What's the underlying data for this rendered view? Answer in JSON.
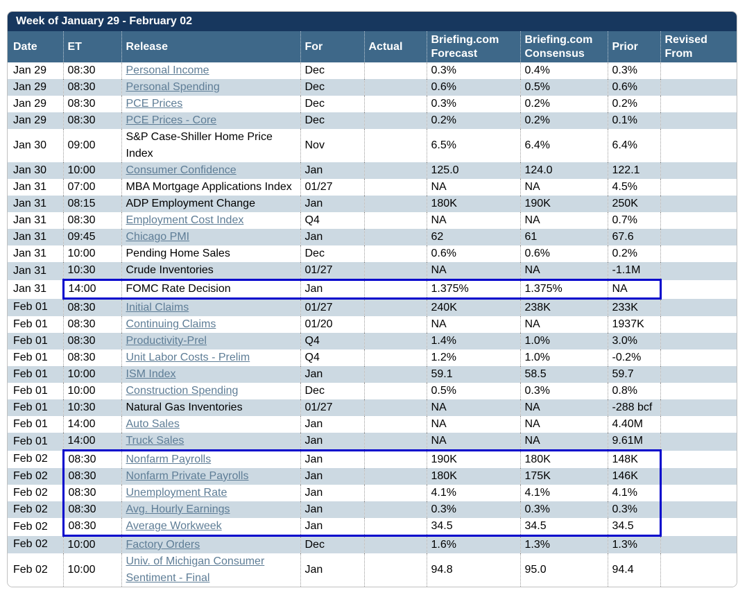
{
  "title": "Week of January 29 - February 02",
  "colors": {
    "title_bar_bg": "#17375E",
    "header_bg": "#3E6889",
    "alt_row_bg": "#CCD9E2",
    "link": "#5E7D96",
    "highlight_border": "#0000CC",
    "outer_border": "#C0C0C0",
    "dotted_separator": "#999999",
    "title_text": "#FFFFFF",
    "header_text": "#FFFFFF",
    "body_text": "#000000"
  },
  "columns": [
    {
      "key": "date",
      "label": "Date"
    },
    {
      "key": "et",
      "label": "ET"
    },
    {
      "key": "release",
      "label": "Release"
    },
    {
      "key": "for",
      "label": "For"
    },
    {
      "key": "actual",
      "label": "Actual"
    },
    {
      "key": "forecast",
      "label": "Briefing.com Forecast"
    },
    {
      "key": "consensus",
      "label": "Briefing.com Consensus"
    },
    {
      "key": "prior",
      "label": "Prior"
    },
    {
      "key": "revised",
      "label": "Revised From"
    }
  ],
  "rows": [
    {
      "date": "Jan 29",
      "et": "08:30",
      "release": "Personal Income",
      "is_link": true,
      "for": "Dec",
      "actual": "",
      "forecast": "0.3%",
      "consensus": "0.4%",
      "prior": "0.3%",
      "revised": "",
      "highlight": "none"
    },
    {
      "date": "Jan 29",
      "et": "08:30",
      "release": "Personal Spending",
      "is_link": true,
      "for": "Dec",
      "actual": "",
      "forecast": "0.6%",
      "consensus": "0.5%",
      "prior": "0.6%",
      "revised": "",
      "highlight": "none"
    },
    {
      "date": "Jan 29",
      "et": "08:30",
      "release": "PCE Prices",
      "is_link": true,
      "for": "Dec",
      "actual": "",
      "forecast": "0.3%",
      "consensus": "0.2%",
      "prior": "0.2%",
      "revised": "",
      "highlight": "none"
    },
    {
      "date": "Jan 29",
      "et": "08:30",
      "release": "PCE Prices - Core",
      "is_link": true,
      "for": "Dec",
      "actual": "",
      "forecast": "0.2%",
      "consensus": "0.2%",
      "prior": "0.1%",
      "revised": "",
      "highlight": "none"
    },
    {
      "date": "Jan 30",
      "et": "09:00",
      "release": "S&P Case-Shiller Home Price Index",
      "is_link": false,
      "for": "Nov",
      "actual": "",
      "forecast": "6.5%",
      "consensus": "6.4%",
      "prior": "6.4%",
      "revised": "",
      "highlight": "none"
    },
    {
      "date": "Jan 30",
      "et": "10:00",
      "release": "Consumer Confidence",
      "is_link": true,
      "for": "Jan",
      "actual": "",
      "forecast": "125.0",
      "consensus": "124.0",
      "prior": "122.1",
      "revised": "",
      "highlight": "none"
    },
    {
      "date": "Jan 31",
      "et": "07:00",
      "release": "MBA Mortgage Applications Index",
      "is_link": false,
      "for": "01/27",
      "actual": "",
      "forecast": "NA",
      "consensus": "NA",
      "prior": "4.5%",
      "revised": "",
      "highlight": "none"
    },
    {
      "date": "Jan 31",
      "et": "08:15",
      "release": "ADP Employment Change",
      "is_link": false,
      "for": "Jan",
      "actual": "",
      "forecast": "180K",
      "consensus": "190K",
      "prior": "250K",
      "revised": "",
      "highlight": "none"
    },
    {
      "date": "Jan 31",
      "et": "08:30",
      "release": "Employment Cost Index",
      "is_link": true,
      "for": "Q4",
      "actual": "",
      "forecast": "NA",
      "consensus": "NA",
      "prior": "0.7%",
      "revised": "",
      "highlight": "none"
    },
    {
      "date": "Jan 31",
      "et": "09:45",
      "release": "Chicago PMI",
      "is_link": true,
      "for": "Jan",
      "actual": "",
      "forecast": "62",
      "consensus": "61",
      "prior": "67.6",
      "revised": "",
      "highlight": "none"
    },
    {
      "date": "Jan 31",
      "et": "10:00",
      "release": "Pending Home Sales",
      "is_link": false,
      "for": "Dec",
      "actual": "",
      "forecast": "0.6%",
      "consensus": "0.6%",
      "prior": "0.2%",
      "revised": "",
      "highlight": "none"
    },
    {
      "date": "Jan 31",
      "et": "10:30",
      "release": "Crude Inventories",
      "is_link": false,
      "for": "01/27",
      "actual": "",
      "forecast": "NA",
      "consensus": "NA",
      "prior": "-1.1M",
      "revised": "",
      "highlight": "none"
    },
    {
      "date": "Jan 31",
      "et": "14:00",
      "release": "FOMC Rate Decision",
      "is_link": false,
      "for": "Jan",
      "actual": "",
      "forecast": "1.375%",
      "consensus": "1.375%",
      "prior": "NA",
      "revised": "",
      "highlight": "single"
    },
    {
      "date": "Feb 01",
      "et": "08:30",
      "release": "Initial Claims",
      "is_link": true,
      "for": "01/27",
      "actual": "",
      "forecast": "240K",
      "consensus": "238K",
      "prior": "233K",
      "revised": "",
      "highlight": "none"
    },
    {
      "date": "Feb 01",
      "et": "08:30",
      "release": "Continuing Claims",
      "is_link": true,
      "for": "01/20",
      "actual": "",
      "forecast": "NA",
      "consensus": "NA",
      "prior": "1937K",
      "revised": "",
      "highlight": "none"
    },
    {
      "date": "Feb 01",
      "et": "08:30",
      "release": "Productivity-Prel",
      "is_link": true,
      "for": "Q4",
      "actual": "",
      "forecast": "1.4%",
      "consensus": "1.0%",
      "prior": "3.0%",
      "revised": "",
      "highlight": "none"
    },
    {
      "date": "Feb 01",
      "et": "08:30",
      "release": "Unit Labor Costs - Prelim",
      "is_link": true,
      "for": "Q4",
      "actual": "",
      "forecast": "1.2%",
      "consensus": "1.0%",
      "prior": "-0.2%",
      "revised": "",
      "highlight": "none"
    },
    {
      "date": "Feb 01",
      "et": "10:00",
      "release": "ISM Index",
      "is_link": true,
      "for": "Jan",
      "actual": "",
      "forecast": "59.1",
      "consensus": "58.5",
      "prior": "59.7",
      "revised": "",
      "highlight": "none"
    },
    {
      "date": "Feb 01",
      "et": "10:00",
      "release": "Construction Spending",
      "is_link": true,
      "for": "Dec",
      "actual": "",
      "forecast": "0.5%",
      "consensus": "0.3%",
      "prior": "0.8%",
      "revised": "",
      "highlight": "none"
    },
    {
      "date": "Feb 01",
      "et": "10:30",
      "release": "Natural Gas Inventories",
      "is_link": false,
      "for": "01/27",
      "actual": "",
      "forecast": "NA",
      "consensus": "NA",
      "prior": "-288 bcf",
      "revised": "",
      "highlight": "none"
    },
    {
      "date": "Feb 01",
      "et": "14:00",
      "release": "Auto Sales",
      "is_link": true,
      "for": "Jan",
      "actual": "",
      "forecast": "NA",
      "consensus": "NA",
      "prior": "4.40M",
      "revised": "",
      "highlight": "none"
    },
    {
      "date": "Feb 01",
      "et": "14:00",
      "release": "Truck Sales",
      "is_link": true,
      "for": "Jan",
      "actual": "",
      "forecast": "NA",
      "consensus": "NA",
      "prior": "9.61M",
      "revised": "",
      "highlight": "none"
    },
    {
      "date": "Feb 02",
      "et": "08:30",
      "release": "Nonfarm Payrolls",
      "is_link": true,
      "for": "Jan",
      "actual": "",
      "forecast": "190K",
      "consensus": "180K",
      "prior": "148K",
      "revised": "",
      "highlight": "top"
    },
    {
      "date": "Feb 02",
      "et": "08:30",
      "release": "Nonfarm Private Payrolls",
      "is_link": true,
      "for": "Jan",
      "actual": "",
      "forecast": "180K",
      "consensus": "175K",
      "prior": "146K",
      "revised": "",
      "highlight": "middle"
    },
    {
      "date": "Feb 02",
      "et": "08:30",
      "release": "Unemployment Rate",
      "is_link": true,
      "for": "Jan",
      "actual": "",
      "forecast": "4.1%",
      "consensus": "4.1%",
      "prior": "4.1%",
      "revised": "",
      "highlight": "middle"
    },
    {
      "date": "Feb 02",
      "et": "08:30",
      "release": "Avg. Hourly Earnings",
      "is_link": true,
      "for": "Jan",
      "actual": "",
      "forecast": "0.3%",
      "consensus": "0.3%",
      "prior": "0.3%",
      "revised": "",
      "highlight": "middle"
    },
    {
      "date": "Feb 02",
      "et": "08:30",
      "release": "Average Workweek",
      "is_link": true,
      "for": "Jan",
      "actual": "",
      "forecast": "34.5",
      "consensus": "34.5",
      "prior": "34.5",
      "revised": "",
      "highlight": "bottom"
    },
    {
      "date": "Feb 02",
      "et": "10:00",
      "release": "Factory Orders",
      "is_link": true,
      "for": "Dec",
      "actual": "",
      "forecast": "1.6%",
      "consensus": "1.3%",
      "prior": "1.3%",
      "revised": "",
      "highlight": "none"
    },
    {
      "date": "Feb 02",
      "et": "10:00",
      "release": "Univ. of Michigan Consumer Sentiment - Final",
      "is_link": true,
      "for": "Jan",
      "actual": "",
      "forecast": "94.8",
      "consensus": "95.0",
      "prior": "94.4",
      "revised": "",
      "highlight": "none"
    }
  ]
}
